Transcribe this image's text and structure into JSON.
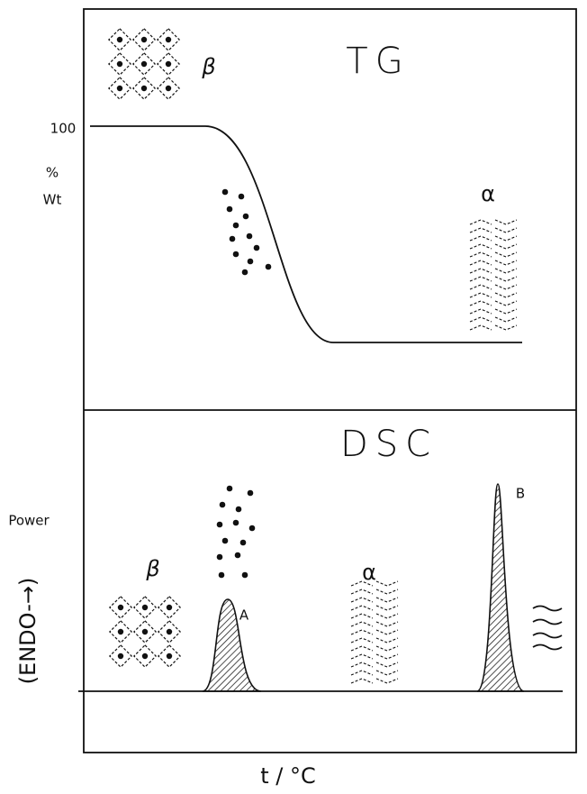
{
  "tg": {
    "title": "TG",
    "y_tick": "100",
    "y_label_top": "%",
    "y_label_bottom": "Wt",
    "phase_left": "β",
    "phase_right": "α"
  },
  "dsc": {
    "title": "DSC",
    "y_label": "Power",
    "y_sublabel": "(ENDO-→)",
    "phase_left": "β",
    "phase_mid": "α",
    "peak_a": "A",
    "peak_b": "B"
  },
  "x_label": "t / °C"
}
